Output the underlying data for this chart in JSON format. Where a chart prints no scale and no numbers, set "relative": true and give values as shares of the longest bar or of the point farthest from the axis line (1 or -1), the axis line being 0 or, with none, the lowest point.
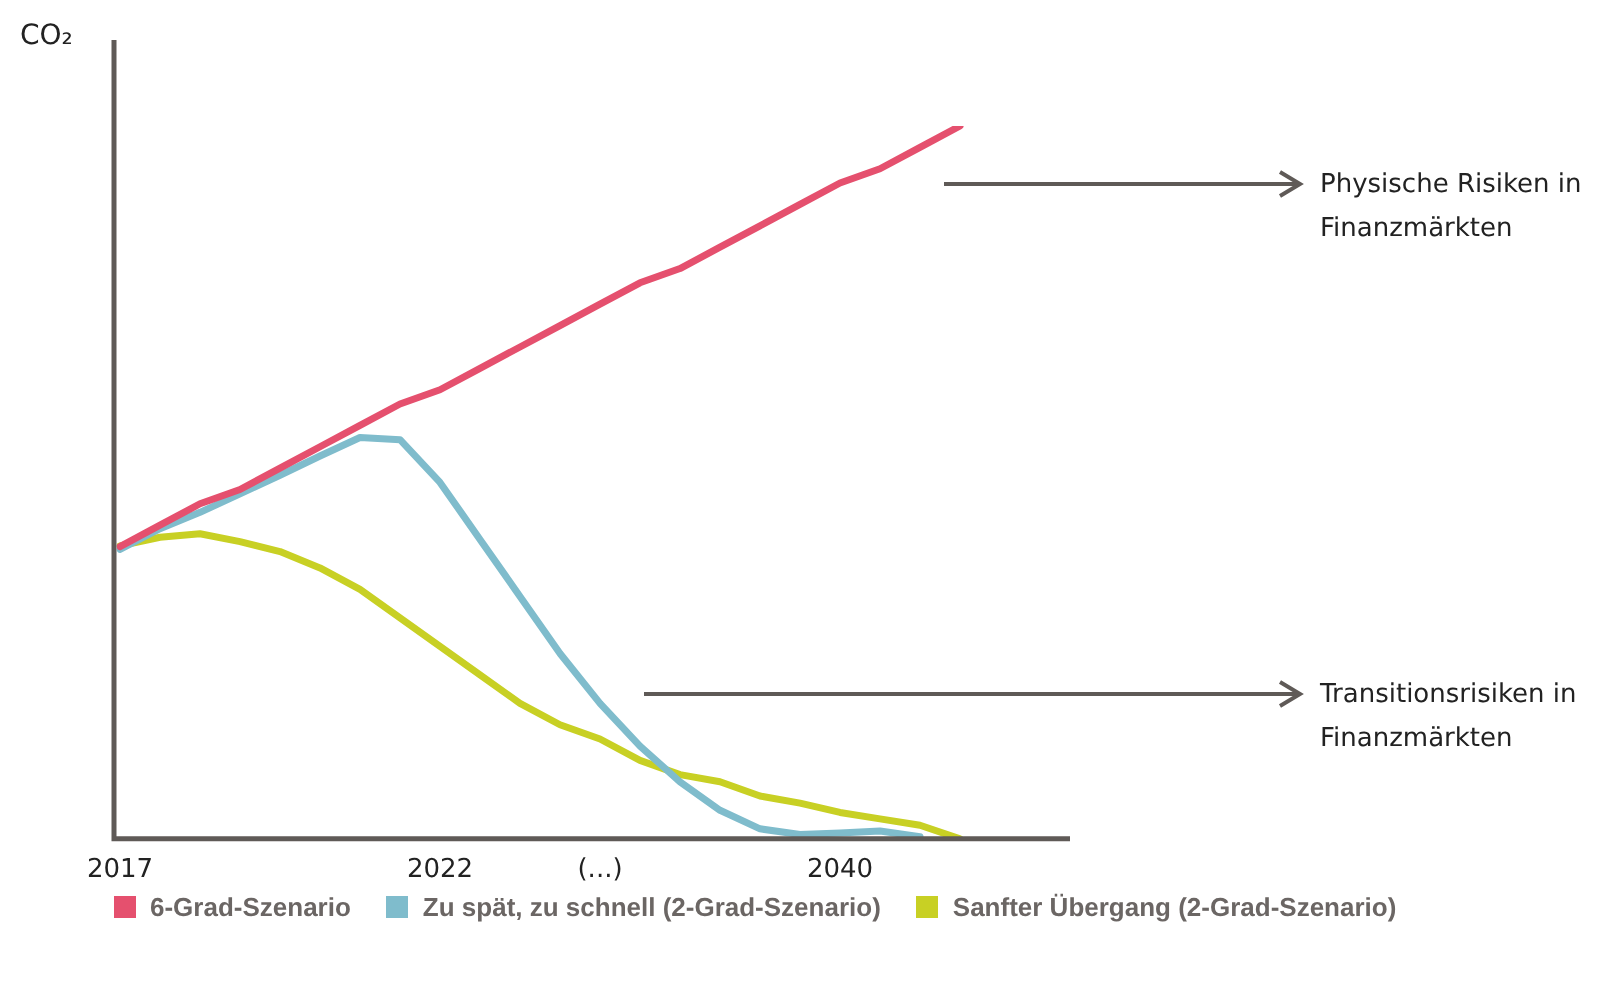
{
  "chart_data": {
    "type": "line",
    "relative": true,
    "ylabel": "CO₂",
    "categories": [
      "2017",
      null,
      null,
      null,
      null,
      null,
      null,
      null,
      "2022",
      null,
      null,
      null,
      "(...)",
      null,
      null,
      null,
      null,
      null,
      "2040",
      null,
      null,
      null,
      null,
      null,
      null
    ],
    "series": [
      {
        "name": "6-Grad-Szenario",
        "color": "#e5506e",
        "values": [
          0.41,
          0.44,
          0.47,
          0.49,
          0.52,
          0.55,
          0.58,
          0.61,
          0.63,
          0.66,
          0.69,
          0.72,
          0.75,
          0.78,
          0.8,
          0.83,
          0.86,
          0.89,
          0.92,
          0.94,
          0.97,
          1,
          null,
          null,
          null
        ]
      },
      {
        "name": "Zu spät, zu schnell (2-Grad-Szenario)",
        "color": "#7fbccc",
        "values": [
          0.406,
          0.435,
          0.458,
          0.484,
          0.51,
          0.537,
          0.563,
          0.56,
          0.5,
          0.42,
          0.34,
          0.26,
          0.19,
          0.13,
          0.08,
          0.04,
          0.014,
          0.006,
          0.008,
          0.011,
          0.003,
          null,
          null,
          null,
          null
        ]
      },
      {
        "name": "Sanfter Übergang (2-Grad-Szenario)",
        "color": "#c8d024",
        "values": [
          0.411,
          0.423,
          0.428,
          0.417,
          0.403,
          0.38,
          0.35,
          0.31,
          0.27,
          0.23,
          0.19,
          0.16,
          0.14,
          0.11,
          0.09,
          0.08,
          0.06,
          0.05,
          0.037,
          0.028,
          0.019,
          0,
          null,
          null,
          null
        ]
      }
    ],
    "annotations": [
      "Physische Risiken in Finanzmärkten",
      "Transitionsrisiken in Finanzmärkten"
    ],
    "legend": "bottom",
    "grid": false,
    "marker": "none",
    "line_style": "solid"
  }
}
